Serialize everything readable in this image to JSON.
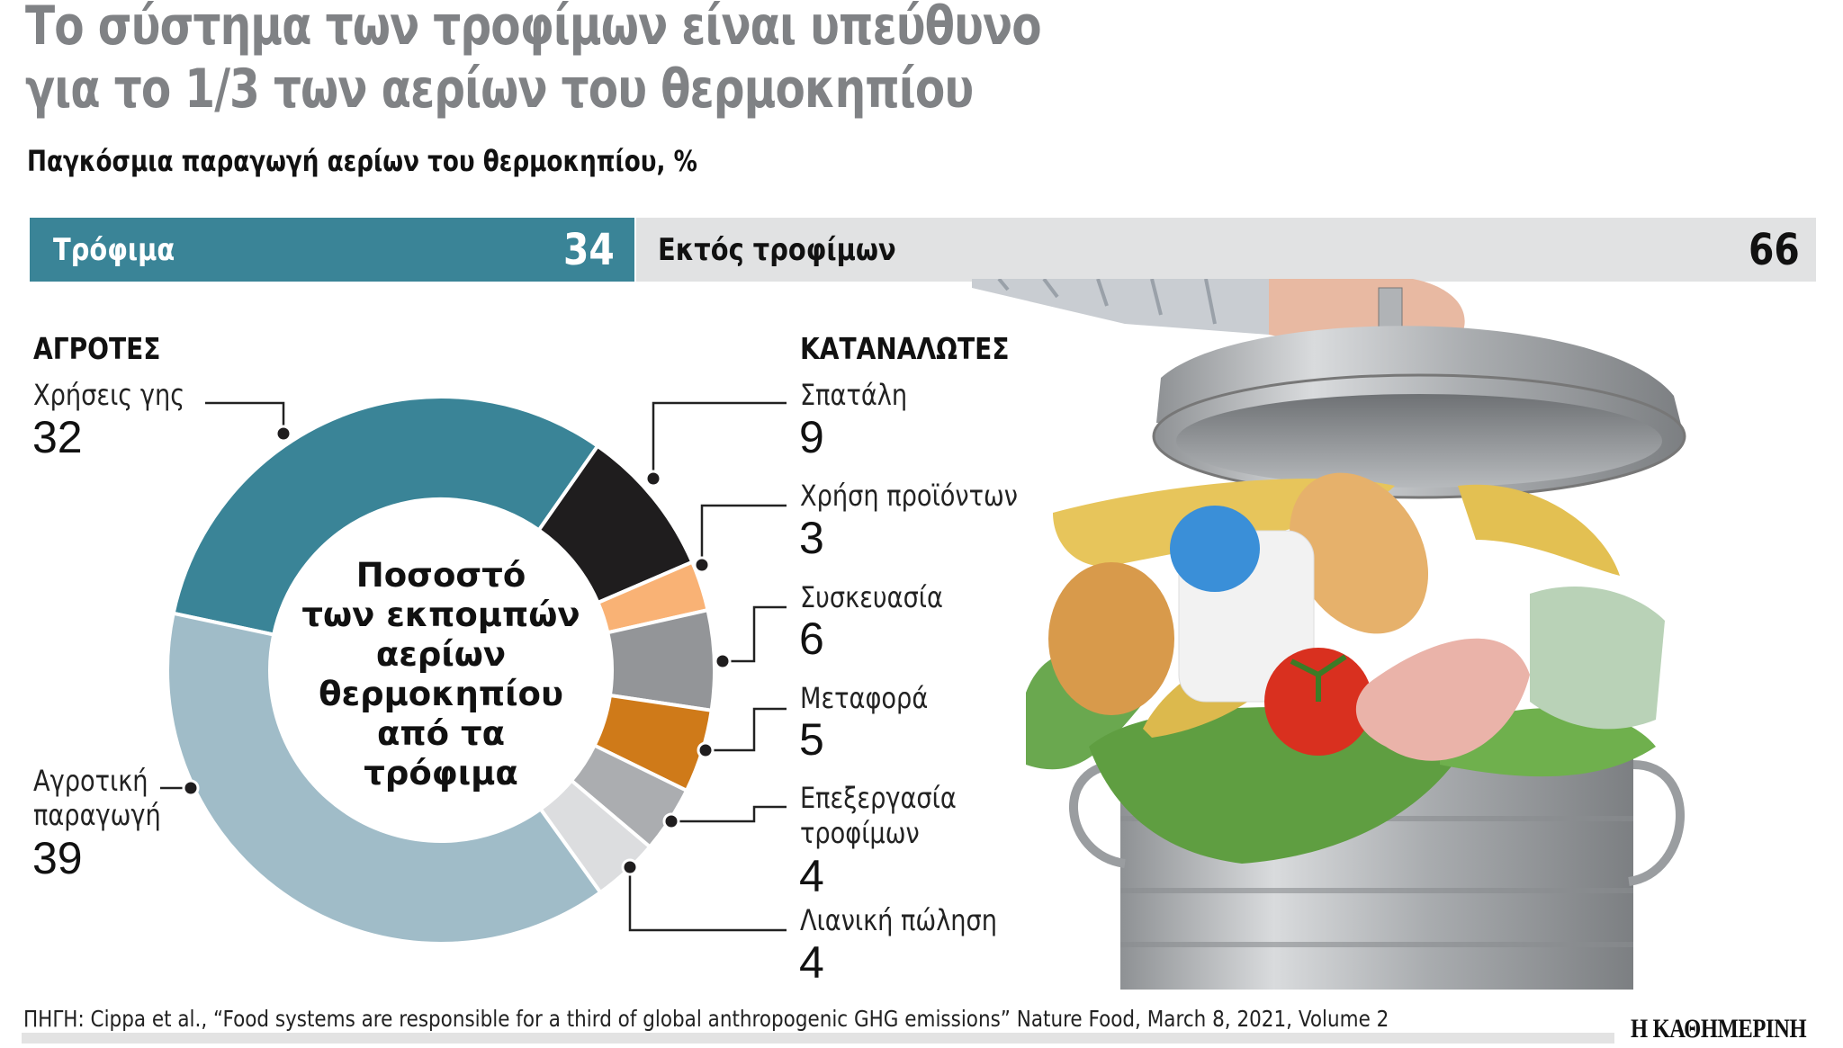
{
  "header": {
    "title_line1": "Το σύστημα των τροφίμων είναι υπεύθυνο",
    "title_line2": "για το 1/3 των αερίων του θερμοκηπίου",
    "subtitle": "Παγκόσμια παραγωγή αερίων του θερμοκηπίου, %"
  },
  "summary_bar": {
    "food_label": "Τρόφιμα",
    "food_value": "34",
    "nonfood_label": "Εκτός τροφίμων",
    "nonfood_value": "66",
    "food_color": "#3a8497",
    "nonfood_color": "#e1e2e3"
  },
  "groups": {
    "farmers": "ΑΓΡΟΤΕΣ",
    "consumers": "ΚΑΤΑΝΑΛΩΤΕΣ"
  },
  "center_label": [
    "Ποσοστό",
    "των εκπομπών",
    "αερίων",
    "θερμοκηπίου",
    "από τα τρόφιμα"
  ],
  "labels": {
    "land_use": {
      "name": "Χρήσεις γης",
      "value": "32"
    },
    "agri_prod": {
      "name1": "Αγροτική",
      "name2": "παραγωγή",
      "value": "39"
    },
    "waste": {
      "name": "Σπατάλη",
      "value": "9"
    },
    "consumption": {
      "name": "Χρήση προϊόντων",
      "value": "3"
    },
    "packaging": {
      "name": "Συσκευασία",
      "value": "6"
    },
    "transport": {
      "name": "Μεταφορά",
      "value": "5"
    },
    "processing": {
      "name1": "Επεξεργασία",
      "name2": "τροφίμων",
      "value": "4"
    },
    "retail": {
      "name": "Λιανική πώληση",
      "value": "4"
    }
  },
  "footer": {
    "source": "ΠΗΓΗ: Cippa et al., “Food systems are responsible for a third of global anthropogenic GHG emissions” Nature Food, March 8, 2021, Volume 2",
    "brand": "Η ΚΑΘΗΜΕΡΙΝΗ"
  },
  "chart_data": [
    {
      "type": "bar",
      "title": "Παγκόσμια παραγωγή αερίων του θερμοκηπίου, %",
      "categories": [
        "Τρόφιμα",
        "Εκτός τροφίμων"
      ],
      "values": [
        34,
        66
      ],
      "colors": [
        "#3a8497",
        "#e1e2e3"
      ],
      "orientation": "horizontal-stacked"
    },
    {
      "type": "pie",
      "subtype": "donut",
      "title": "Ποσοστό των εκπομπών αερίων θερμοκηπίου από τα τρόφιμα",
      "start_angle_deg": -78,
      "slices": [
        {
          "label": "Χρήσεις γης",
          "group": "ΑΓΡΟΤΕΣ",
          "value": 32,
          "color": "#3a8497"
        },
        {
          "label": "Σπατάλη",
          "group": "ΚΑΤΑΝΑΛΩΤΕΣ",
          "value": 9,
          "color": "#1f1d1e"
        },
        {
          "label": "Χρήση προϊόντων",
          "group": "ΚΑΤΑΝΑΛΩΤΕΣ",
          "value": 3,
          "color": "#f9b275"
        },
        {
          "label": "Συσκευασία",
          "group": "ΚΑΤΑΝΑΛΩΤΕΣ",
          "value": 6,
          "color": "#939598"
        },
        {
          "label": "Μεταφορά",
          "group": "ΚΑΤΑΝΑΛΩΤΕΣ",
          "value": 5,
          "color": "#cf7a19"
        },
        {
          "label": "Επεξεργασία τροφίμων",
          "group": "ΚΑΤΑΝΑΛΩΤΕΣ",
          "value": 4,
          "color": "#abadb0"
        },
        {
          "label": "Λιανική πώληση",
          "group": "ΚΑΤΑΝΑΛΩΤΕΣ",
          "value": 4,
          "color": "#dcdddf"
        },
        {
          "label": "Αγροτική παραγωγή",
          "group": "ΑΓΡΟΤΕΣ",
          "value": 39,
          "color": "#a0bcc8"
        }
      ],
      "legend_position": "callouts"
    }
  ]
}
